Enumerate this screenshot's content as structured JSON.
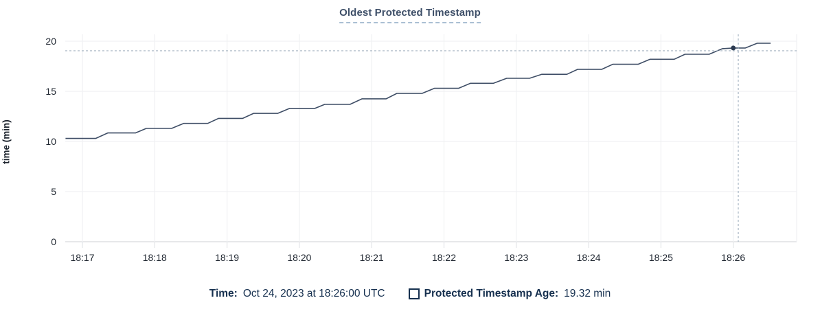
{
  "title": {
    "text": "Oldest Protected Timestamp"
  },
  "y_axis": {
    "label": "time (min)"
  },
  "legend": {
    "time_label": "Time:",
    "time_value": "Oct 24, 2023 at 18:26:00 UTC",
    "series_swatch_icon": "square-outline-icon",
    "series_label": "Protected Timestamp Age:",
    "series_value": "19.32 min"
  },
  "colors": {
    "line": "#3f4e66",
    "hover_dot": "#2b3950",
    "crosshair": "#a3b2c0",
    "grid": "#f0f1f3",
    "baseline": "#e7e8ea",
    "tick_stub": "#e3e5e8",
    "axis_text": "#212832",
    "title_text": "#3e4f68",
    "legend_text": "#16304f"
  },
  "chart_data": {
    "type": "line",
    "title": "Oldest Protected Timestamp",
    "xlabel": "",
    "ylabel": "time (min)",
    "ylim": [
      0,
      20
    ],
    "y_ticks": [
      0,
      5,
      10,
      15,
      20
    ],
    "x_ticks": [
      "18:17",
      "18:18",
      "18:19",
      "18:20",
      "18:21",
      "18:22",
      "18:23",
      "18:24",
      "18:25",
      "18:26"
    ],
    "grid": true,
    "legend_position": "bottom",
    "series": [
      {
        "name": "Protected Timestamp Age",
        "unit": "min",
        "points": [
          {
            "t": "18:16:46",
            "v": 10.3
          },
          {
            "t": "18:17:11",
            "v": 10.3
          },
          {
            "t": "18:17:21",
            "v": 10.85
          },
          {
            "t": "18:17:44",
            "v": 10.85
          },
          {
            "t": "18:17:53",
            "v": 11.3
          },
          {
            "t": "18:18:14",
            "v": 11.3
          },
          {
            "t": "18:18:24",
            "v": 11.8
          },
          {
            "t": "18:18:44",
            "v": 11.8
          },
          {
            "t": "18:18:53",
            "v": 12.3
          },
          {
            "t": "18:19:13",
            "v": 12.3
          },
          {
            "t": "18:19:22",
            "v": 12.8
          },
          {
            "t": "18:19:42",
            "v": 12.8
          },
          {
            "t": "18:19:52",
            "v": 13.3
          },
          {
            "t": "18:20:13",
            "v": 13.3
          },
          {
            "t": "18:20:21",
            "v": 13.7
          },
          {
            "t": "18:20:42",
            "v": 13.7
          },
          {
            "t": "18:20:52",
            "v": 14.25
          },
          {
            "t": "18:21:12",
            "v": 14.25
          },
          {
            "t": "18:21:21",
            "v": 14.8
          },
          {
            "t": "18:21:42",
            "v": 14.8
          },
          {
            "t": "18:21:52",
            "v": 15.3
          },
          {
            "t": "18:22:12",
            "v": 15.3
          },
          {
            "t": "18:22:22",
            "v": 15.8
          },
          {
            "t": "18:22:41",
            "v": 15.8
          },
          {
            "t": "18:22:52",
            "v": 16.3
          },
          {
            "t": "18:23:11",
            "v": 16.3
          },
          {
            "t": "18:23:21",
            "v": 16.7
          },
          {
            "t": "18:23:42",
            "v": 16.7
          },
          {
            "t": "18:23:51",
            "v": 17.2
          },
          {
            "t": "18:24:11",
            "v": 17.2
          },
          {
            "t": "18:24:20",
            "v": 17.7
          },
          {
            "t": "18:24:41",
            "v": 17.7
          },
          {
            "t": "18:24:51",
            "v": 18.2
          },
          {
            "t": "18:25:11",
            "v": 18.2
          },
          {
            "t": "18:25:20",
            "v": 18.7
          },
          {
            "t": "18:25:40",
            "v": 18.7
          },
          {
            "t": "18:25:51",
            "v": 19.25
          },
          {
            "t": "18:26:00",
            "v": 19.32
          },
          {
            "t": "18:26:10",
            "v": 19.32
          },
          {
            "t": "18:26:20",
            "v": 19.8
          },
          {
            "t": "18:26:31",
            "v": 19.8
          }
        ]
      }
    ],
    "hover": {
      "t": "18:26:00",
      "value": 19.32,
      "time_label": "Oct 24, 2023 at 18:26:00 UTC",
      "value_label": "19.32 min"
    }
  }
}
